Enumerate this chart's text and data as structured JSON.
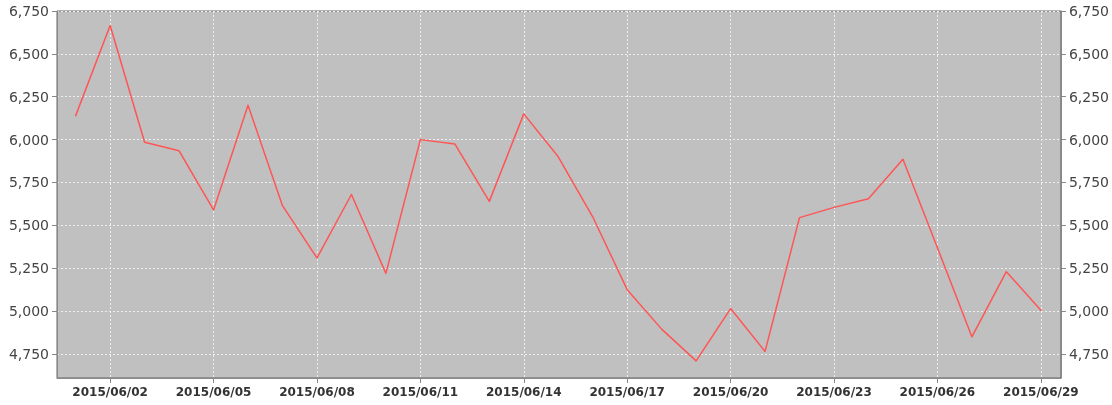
{
  "chart_data": {
    "type": "line",
    "x": [
      "2015-06-01",
      "2015-06-02",
      "2015-06-03",
      "2015-06-04",
      "2015-06-05",
      "2015-06-06",
      "2015-06-07",
      "2015-06-08",
      "2015-06-09",
      "2015-06-10",
      "2015-06-11",
      "2015-06-12",
      "2015-06-13",
      "2015-06-14",
      "2015-06-15",
      "2015-06-16",
      "2015-06-17",
      "2015-06-18",
      "2015-06-19",
      "2015-06-20",
      "2015-06-21",
      "2015-06-22",
      "2015-06-23",
      "2015-06-24",
      "2015-06-25",
      "2015-06-26",
      "2015-06-27",
      "2015-06-28",
      "2015-06-29"
    ],
    "series": [
      {
        "color": "#ff5555",
        "values": [
          6140,
          6665,
          5985,
          5935,
          5590,
          6200,
          5615,
          5310,
          5680,
          5220,
          6000,
          5975,
          5640,
          6150,
          5900,
          5550,
          5125,
          4895,
          4710,
          5015,
          4765,
          5545,
          5605,
          5655,
          5885,
          5370,
          4850,
          5230,
          5005
        ]
      }
    ],
    "xlim": [
      "2015-05-31T11:00",
      "2015-06-29T14:00"
    ],
    "xticks": [
      {
        "value": "2015-06-02",
        "label": "2015/06/02"
      },
      {
        "value": "2015-06-05",
        "label": "2015/06/05"
      },
      {
        "value": "2015-06-08",
        "label": "2015/06/08"
      },
      {
        "value": "2015-06-11",
        "label": "2015/06/11"
      },
      {
        "value": "2015-06-14",
        "label": "2015/06/14"
      },
      {
        "value": "2015-06-17",
        "label": "2015/06/17"
      },
      {
        "value": "2015-06-20",
        "label": "2015/06/20"
      },
      {
        "value": "2015-06-23",
        "label": "2015/06/23"
      },
      {
        "value": "2015-06-26",
        "label": "2015/06/26"
      },
      {
        "value": "2015-06-29",
        "label": "2015/06/29"
      }
    ],
    "ylim": [
      4610,
      6750
    ],
    "yticks": [
      {
        "value": 4750,
        "label": "4,750"
      },
      {
        "value": 5000,
        "label": "5,000"
      },
      {
        "value": 5250,
        "label": "5,250"
      },
      {
        "value": 5500,
        "label": "5,500"
      },
      {
        "value": 5750,
        "label": "5,750"
      },
      {
        "value": 6000,
        "label": "6,000"
      },
      {
        "value": 6250,
        "label": "6,250"
      },
      {
        "value": 6500,
        "label": "6,500"
      },
      {
        "value": 6750,
        "label": "6,750"
      }
    ],
    "y2lim": [
      4610,
      6750
    ],
    "y2ticks": [
      {
        "value": 4750,
        "label": "4,750"
      },
      {
        "value": 5000,
        "label": "5,000"
      },
      {
        "value": 5250,
        "label": "5,250"
      },
      {
        "value": 5500,
        "label": "5,500"
      },
      {
        "value": 5750,
        "label": "5,750"
      },
      {
        "value": 6000,
        "label": "6,000"
      },
      {
        "value": 6250,
        "label": "6,250"
      },
      {
        "value": 6500,
        "label": "6,500"
      },
      {
        "value": 6750,
        "label": "6,750"
      }
    ],
    "grid": true,
    "marker": "none",
    "line_style": "solid"
  }
}
